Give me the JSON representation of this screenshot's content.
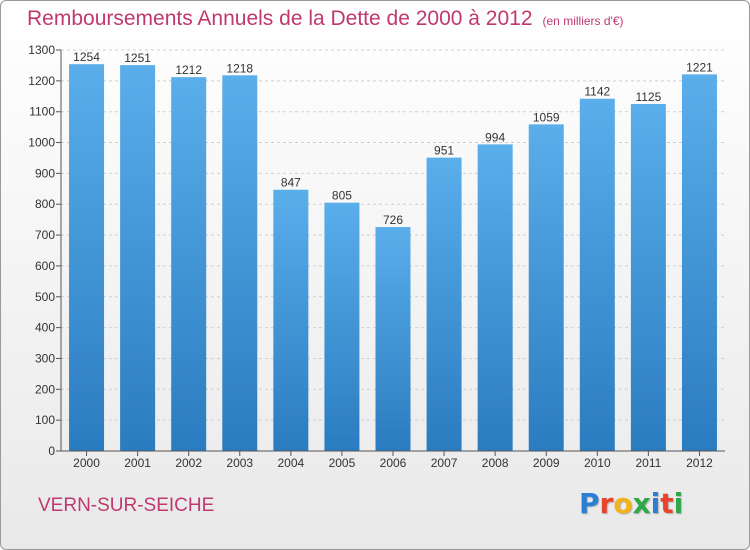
{
  "header": {
    "title": "Remboursements Annuels de la Dette de 2000 à 2012",
    "subtitle": "(en milliers d'€)"
  },
  "footer": {
    "commune": "VERN-SUR-SEICHE",
    "logo_letters": [
      "P",
      "r",
      "o",
      "x",
      "i",
      "t",
      "i"
    ],
    "logo_colors": [
      "#2a7fd4",
      "#e9442b",
      "#f2b21b",
      "#2fa84a",
      "#2a7fd4",
      "#e9442b",
      "#2fa84a"
    ]
  },
  "colors": {
    "bar_top": "#5aaeea",
    "bar_bottom": "#2a7cc0",
    "accent": "#c0396e",
    "grid": "#cfcfcf"
  },
  "chart_data": {
    "type": "bar",
    "categories": [
      "2000",
      "2001",
      "2002",
      "2003",
      "2004",
      "2005",
      "2006",
      "2007",
      "2008",
      "2009",
      "2010",
      "2011",
      "2012"
    ],
    "values": [
      1254,
      1251,
      1212,
      1218,
      847,
      805,
      726,
      951,
      994,
      1059,
      1142,
      1125,
      1221
    ],
    "data_labels": [
      "1254",
      "1251",
      "1212",
      "1218",
      "847",
      "805",
      "726",
      "951",
      "994",
      "1059",
      "1142",
      "1125",
      "1221"
    ],
    "yticks": [
      0,
      100,
      200,
      300,
      400,
      500,
      600,
      700,
      800,
      900,
      1000,
      1100,
      1200,
      1300
    ],
    "ylim": [
      0,
      1300
    ],
    "grid": true,
    "legend": "none"
  }
}
